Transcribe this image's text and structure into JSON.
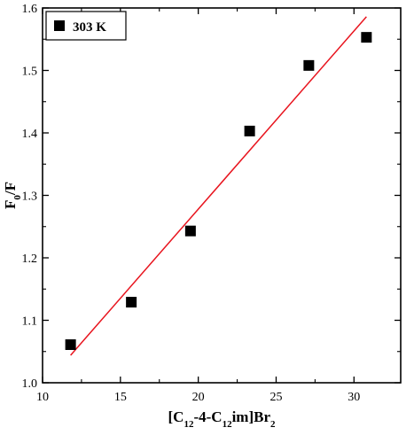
{
  "chart_data": {
    "type": "scatter",
    "title": "",
    "xlabel": {
      "parts": [
        {
          "text": "[C",
          "sub": false
        },
        {
          "text": "12",
          "sub": true
        },
        {
          "text": "-4-C",
          "sub": false
        },
        {
          "text": "12",
          "sub": true
        },
        {
          "text": "im]Br",
          "sub": false
        },
        {
          "text": "2",
          "sub": true
        }
      ]
    },
    "ylabel": {
      "parts": [
        {
          "text": "F",
          "sub": false
        },
        {
          "text": "0",
          "sub": true
        },
        {
          "text": "/F",
          "sub": false
        }
      ]
    },
    "xlim": [
      10,
      33
    ],
    "ylim": [
      1.0,
      1.6
    ],
    "xticks": [
      10,
      15,
      20,
      25,
      30
    ],
    "xtick_labels": [
      "10",
      "15",
      "20",
      "25",
      "30"
    ],
    "yticks": [
      1.0,
      1.1,
      1.2,
      1.3,
      1.4,
      1.5,
      1.6
    ],
    "ytick_labels": [
      "1.0",
      "1.1",
      "1.2",
      "1.3",
      "1.4",
      "1.5",
      "1.6"
    ],
    "grid": false,
    "legend": {
      "placement": "top-left",
      "entries": [
        "303 K"
      ]
    },
    "series": [
      {
        "name": "303 K",
        "marker": "square",
        "color": "#000000",
        "x": [
          11.8,
          15.7,
          19.5,
          23.3,
          27.1,
          30.8
        ],
        "y": [
          1.061,
          1.129,
          1.243,
          1.403,
          1.508,
          1.553
        ]
      }
    ],
    "fit_line": {
      "color": "#e8141e",
      "x": [
        11.8,
        30.8
      ],
      "y": [
        1.044,
        1.586
      ]
    }
  }
}
